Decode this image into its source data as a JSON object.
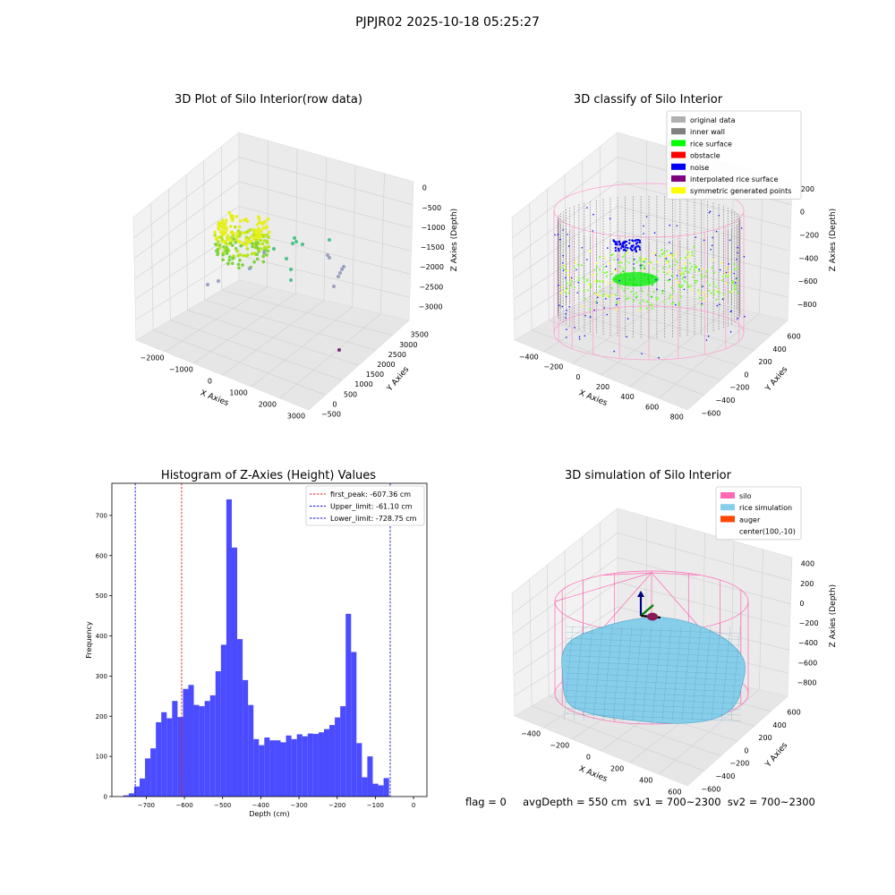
{
  "suptitle": "PJPJR02 2025-10-18 05:25:27",
  "footer_text": "flag = 0     avgDepth = 550 cm  sv1 = 700~2300  sv2 = 700~2300",
  "colors": {
    "hist_bar": "#4B4BFF",
    "first_peak": "#DD2222",
    "limits": "#1515D8",
    "silo": "#FF69B4",
    "rice": "#87CEEB",
    "auger": "#FF4500",
    "rice_surface": "#00FF00",
    "noise": "#0000FF",
    "inner_wall": "#808080"
  },
  "chart_data": [
    {
      "id": "raw",
      "type": "scatter",
      "projection": "3d",
      "title": "3D Plot of Silo Interior(row data)",
      "xlabel": "X Axies",
      "ylabel": "Y Axies",
      "zlabel": "Z Axies (Depth)",
      "x_ticks": [
        "−2000",
        "−1000",
        "0",
        "1000",
        "2000",
        "3000"
      ],
      "y_ticks": [
        "−500",
        "0",
        "500",
        "1000",
        "1500",
        "2000",
        "2500",
        "3000",
        "3500"
      ],
      "z_ticks": [
        "0",
        "−500",
        "−1000",
        "−1500",
        "−2000",
        "−2500",
        "−3000"
      ]
    },
    {
      "id": "classify",
      "type": "scatter",
      "projection": "3d",
      "title": "3D classify of Silo Interior",
      "xlabel": "X Axies",
      "ylabel": "Y Axies",
      "zlabel": "Z Axies (Depth)",
      "x_ticks": [
        "−400",
        "−200",
        "0",
        "200",
        "400",
        "600",
        "800"
      ],
      "y_ticks": [
        "−600",
        "−400",
        "−200",
        "0",
        "200",
        "400",
        "600"
      ],
      "z_ticks": [
        "200",
        "0",
        "−200",
        "−400",
        "−600",
        "−800"
      ],
      "legend": [
        {
          "label": "original data",
          "color": "#B0B0B0"
        },
        {
          "label": "inner wall",
          "color": "#808080"
        },
        {
          "label": "rice surface",
          "color": "#00FF00"
        },
        {
          "label": "obstacle",
          "color": "#FF0000"
        },
        {
          "label": "noise",
          "color": "#0000FF"
        },
        {
          "label": "interpolated rice surface",
          "color": "#800080"
        },
        {
          "label": "symmetric generated points",
          "color": "#FFFF00"
        }
      ],
      "legend_position": "top-right"
    },
    {
      "id": "hist",
      "type": "bar",
      "title": "Histogram of Z-Axies (Height) Values",
      "xlabel": "Depth (cm)",
      "ylabel": "Frequency",
      "xlim": [
        -790,
        35
      ],
      "ylim": [
        0,
        780
      ],
      "x_ticks": [
        -700,
        -600,
        -500,
        -400,
        -300,
        -200,
        -100,
        0
      ],
      "y_ticks": [
        0,
        100,
        200,
        300,
        400,
        500,
        600,
        700
      ],
      "bin_start": -760,
      "bin_width": 14.2,
      "values": [
        3,
        8,
        25,
        45,
        95,
        120,
        185,
        210,
        195,
        238,
        198,
        268,
        278,
        228,
        225,
        238,
        252,
        312,
        378,
        740,
        620,
        392,
        290,
        228,
        143,
        128,
        147,
        140,
        140,
        135,
        152,
        143,
        155,
        150,
        157,
        156,
        160,
        168,
        178,
        197,
        225,
        455,
        360,
        133,
        48,
        100,
        32,
        28,
        46
      ],
      "vlines": [
        {
          "x": -607.36,
          "label": "first_peak: -607.36 cm",
          "color": "#DD2222"
        },
        {
          "x": -61.1,
          "label": "Upper_limit: -61.10 cm",
          "color": "#1515D8"
        },
        {
          "x": -728.75,
          "label": "Lower_limit: -728.75 cm",
          "color": "#1515D8"
        }
      ],
      "legend_position": "top-right"
    },
    {
      "id": "sim",
      "type": "area",
      "projection": "3d",
      "title": "3D simulation of Silo Interior",
      "xlabel": "X Axies",
      "ylabel": "Y Axies",
      "zlabel": "Z Axies (Depth)",
      "x_ticks": [
        "−400",
        "−200",
        "0",
        "200",
        "400",
        "600"
      ],
      "y_ticks": [
        "−600",
        "−400",
        "−200",
        "0",
        "200",
        "400",
        "600"
      ],
      "z_ticks": [
        "400",
        "200",
        "0",
        "−200",
        "−400",
        "−600",
        "−800"
      ],
      "legend": [
        {
          "label": "silo",
          "color": "#FF69B4"
        },
        {
          "label": "rice simulation",
          "color": "#87CEEB"
        },
        {
          "label": "auger",
          "color": "#FF4500"
        },
        {
          "label": "center(100,-10)",
          "color": ""
        }
      ],
      "legend_position": "top-right"
    }
  ]
}
